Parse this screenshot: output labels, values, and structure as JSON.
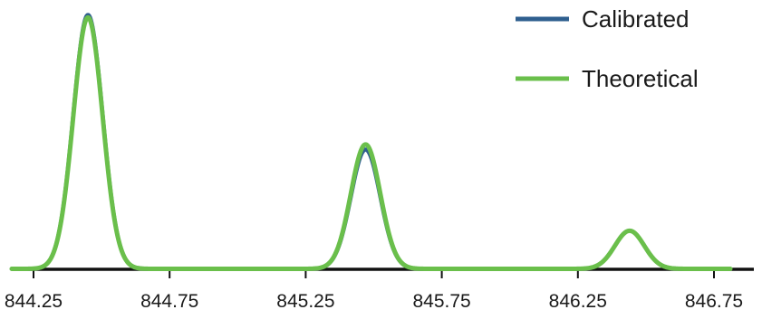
{
  "chart_data": {
    "type": "line",
    "title": "",
    "xlabel": "",
    "ylabel": "",
    "xlim": [
      844.25,
      846.75
    ],
    "ylim": [
      0,
      100
    ],
    "x_ticks": [
      "844.25",
      "844.75",
      "845.25",
      "845.75",
      "846.25",
      "846.75"
    ],
    "y_axis_visible": false,
    "grid": false,
    "legend_position": "top-right",
    "peak_width_sigma": 0.054,
    "series": [
      {
        "name": "Calibrated",
        "color": "#2f5f8f",
        "peaks": [
          {
            "x": 844.45,
            "y": 100
          },
          {
            "x": 845.47,
            "y": 47
          },
          {
            "x": 846.44,
            "y": 15
          }
        ]
      },
      {
        "name": "Theoretical",
        "color": "#6abf4b",
        "peaks": [
          {
            "x": 844.45,
            "y": 99
          },
          {
            "x": 845.47,
            "y": 49
          },
          {
            "x": 846.44,
            "y": 15
          }
        ]
      }
    ],
    "baseline_color": "#111111"
  }
}
